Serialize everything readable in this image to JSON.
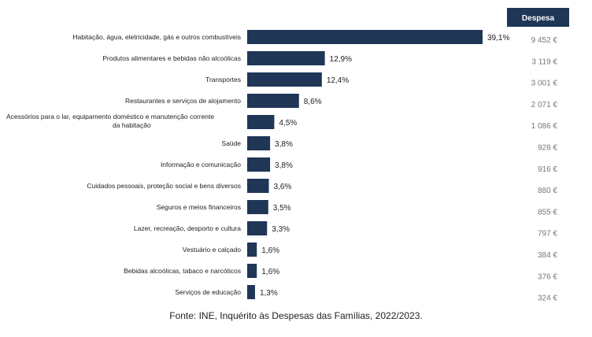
{
  "chart_data": {
    "type": "bar",
    "orientation": "horizontal",
    "column_header": "Despesa",
    "categories": [
      [
        "Habitação, água, eletricidade, gás e outros combustíveis"
      ],
      [
        "Produtos alimentares e bebidas não alcoólicas"
      ],
      [
        "Transportes"
      ],
      [
        "Restaurantes e serviços de alojamento"
      ],
      [
        "Acessórios para o lar, equipamento doméstico e manutenção corrente",
        "da habitação"
      ],
      [
        "Saúde"
      ],
      [
        "Informação e comunicação"
      ],
      [
        "Cuidados pessoais, proteção social e bens diversos"
      ],
      [
        "Seguros e meios financeiros"
      ],
      [
        "Lazer, recreação, desporto e cultura"
      ],
      [
        "Vestuário e calçado"
      ],
      [
        "Bebidas alcoólicas, tabaco e narcóticos"
      ],
      [
        "Serviços de educação"
      ]
    ],
    "values": [
      39.1,
      12.9,
      12.4,
      8.6,
      4.5,
      3.8,
      3.8,
      3.6,
      3.5,
      3.3,
      1.6,
      1.6,
      1.3
    ],
    "value_labels": [
      "39,1%",
      "12,9%",
      "12,4%",
      "8,6%",
      "4,5%",
      "3,8%",
      "3,8%",
      "3,6%",
      "3,5%",
      "3,3%",
      "1,6%",
      "1,6%",
      "1,3%"
    ],
    "expenses": [
      "9 452 €",
      "3 119 €",
      "3 001 €",
      "2 071 €",
      "1 086 €",
      "928 €",
      "916 €",
      "880 €",
      "855 €",
      "797 €",
      "384 €",
      "376 €",
      "324 €"
    ],
    "bar_color": "#1f3657",
    "header_color": "#1f3657",
    "expense_color": "#777777",
    "xlim": [
      0,
      39.1
    ]
  },
  "source": "Fonte: INE, Inquérito às Despesas das Famílias, 2022/2023."
}
